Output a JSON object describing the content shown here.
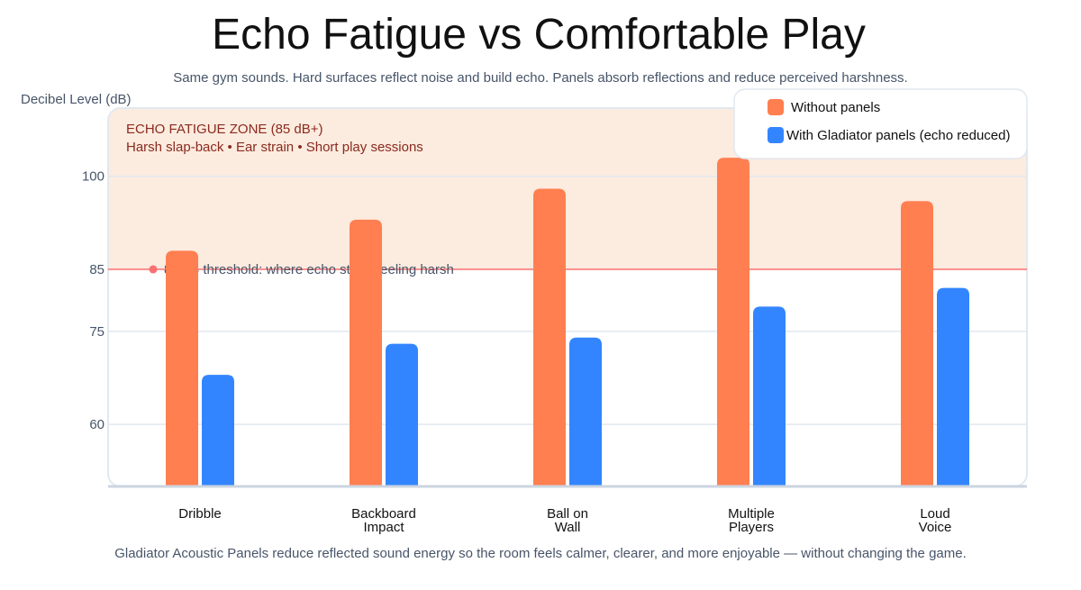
{
  "chart_data": {
    "type": "bar",
    "title": "Echo Fatigue vs Comfortable Play",
    "subtitle": "Same gym sounds. Hard surfaces reflect noise and build echo. Panels absorb reflections and reduce perceived harshness.",
    "ylabel": "Decibel Level (dB)",
    "xlabel": "",
    "ylim": [
      50,
      111
    ],
    "yticks": [
      60,
      75,
      85,
      100
    ],
    "grid": true,
    "legend_position": "top-right",
    "categories": [
      [
        "Dribble"
      ],
      [
        "Backboard",
        "Impact"
      ],
      [
        "Ball on",
        "Wall"
      ],
      [
        "Multiple",
        "Players"
      ],
      [
        "Loud",
        "Voice"
      ]
    ],
    "series": [
      {
        "name": "Without panels",
        "color": "#ff7f50",
        "values": [
          88,
          93,
          98,
          103,
          96
        ]
      },
      {
        "name": "With Gladiator panels",
        "name_suffix": "(echo reduced)",
        "color": "#3385ff",
        "values": [
          68,
          73,
          74,
          79,
          82
        ]
      }
    ],
    "zone": {
      "from": 85,
      "title": "ECHO FATIGUE ZONE (85 dB+)",
      "subtitle": "Harsh slap-back • Ear strain • Short play sessions",
      "fill": "#fcebdf",
      "text_color": "#8b2a1e"
    },
    "threshold": {
      "value": 85,
      "label": "85 dB threshold: where echo starts feeling harsh",
      "color": "#f87171"
    },
    "footnote": "Gladiator Acoustic Panels reduce reflected sound energy so the room feels calmer, clearer, and more enjoyable — without changing the game."
  }
}
